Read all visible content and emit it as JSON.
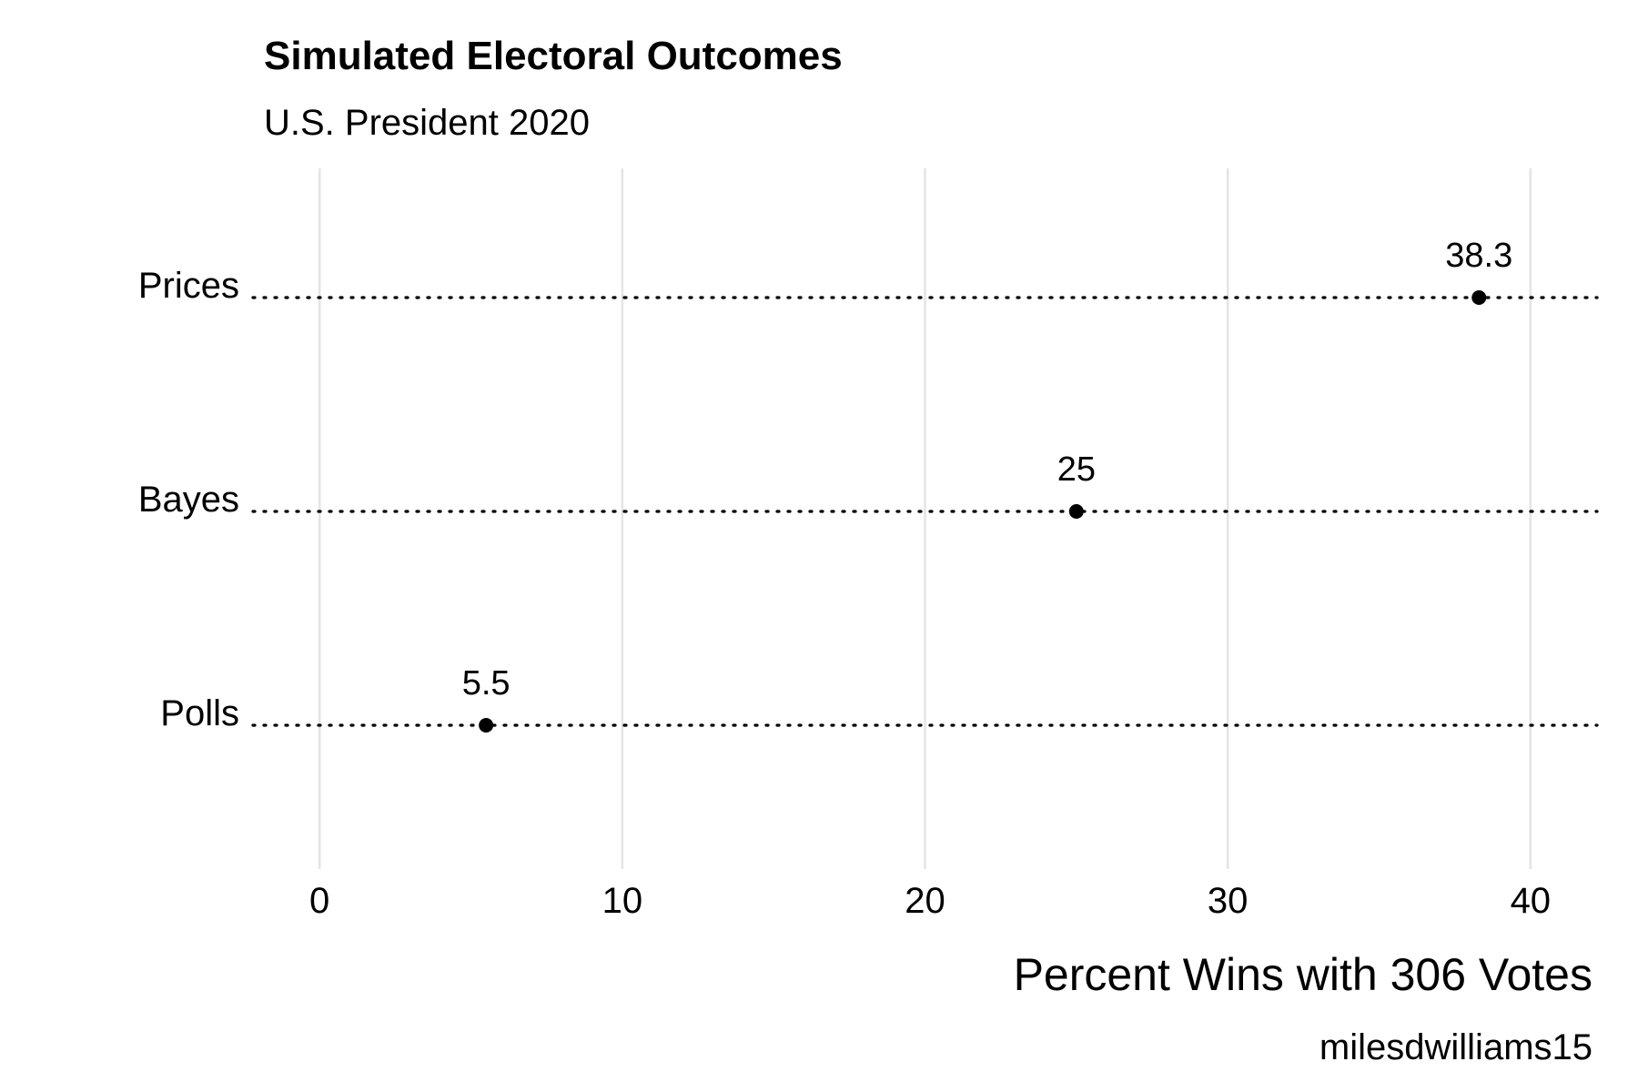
{
  "chart_data": {
    "type": "dot",
    "title": "Simulated Electoral Outcomes",
    "subtitle": "U.S. President 2020",
    "xlabel": "Percent Wins with 306 Votes",
    "ylabel": "",
    "caption": "milesdwilliams15",
    "categories": [
      "Prices",
      "Bayes",
      "Polls"
    ],
    "values": [
      38.3,
      25,
      5.5
    ],
    "data_labels": [
      "38.3",
      "25",
      "5.5"
    ],
    "xticks": [
      0,
      10,
      20,
      30,
      40
    ],
    "xtick_labels": [
      "0",
      "10",
      "20",
      "30",
      "40"
    ],
    "xlim": [
      -2.2,
      42.2
    ],
    "grid": "vertical major",
    "legend": "none",
    "point_color": "#000000",
    "grid_color": "#e5e5e5"
  }
}
